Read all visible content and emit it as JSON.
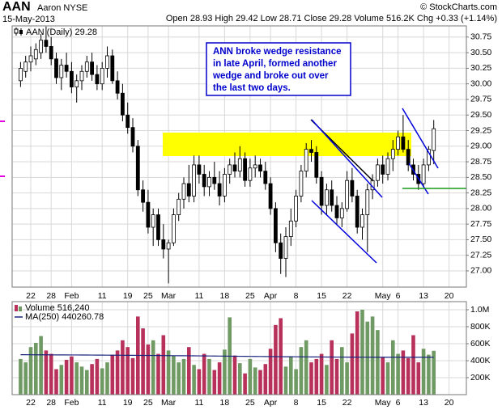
{
  "chart_data": [
    {
      "type": "candlestick",
      "title": "AAN",
      "subtitle": "Aaron NYSE",
      "date": "15-May-2013",
      "source": "© StockCharts.com",
      "quote": "Open 28.93 High 29.42 Low 28.71 Close 29.28 Volume 516.2K Chg +0.33 (+1.14%)",
      "name": "AAN (Daily) 29.28",
      "annotation": [
        "ANN broke wedge resistance",
        "in late April, formed another",
        "wedge and broke out over",
        "the last two days."
      ],
      "categories": [
        null,
        null,
        "22",
        null,
        null,
        null,
        "28",
        null,
        null,
        null,
        "Feb",
        null,
        null,
        null,
        null,
        null,
        "11",
        null,
        null,
        null,
        null,
        "19",
        null,
        null,
        null,
        "25",
        null,
        null,
        null,
        "Mar",
        null,
        null,
        null,
        null,
        null,
        "11",
        null,
        null,
        null,
        null,
        "18",
        null,
        null,
        null,
        null,
        "25",
        null,
        null,
        null,
        "Apr",
        null,
        null,
        null,
        null,
        "8",
        null,
        null,
        null,
        null,
        "15",
        null,
        null,
        null,
        null,
        "22",
        null,
        null,
        null,
        null,
        null,
        null,
        "May",
        null,
        null,
        "6",
        null,
        null,
        null,
        null,
        "13",
        null,
        null,
        null,
        null,
        "20",
        null,
        null
      ],
      "open": [
        30.05,
        30.2,
        30.35,
        30.4,
        30.5,
        30.7,
        30.6,
        30.4,
        30.1,
        30.3,
        30.2,
        29.95,
        30.05,
        30.2,
        30.35,
        30.15,
        30.0,
        30.25,
        30.45,
        30.05,
        29.85,
        29.5,
        29.3,
        29.0,
        28.3,
        28.1,
        27.7,
        27.9,
        27.5,
        27.35,
        27.45,
        27.9,
        28.15,
        28.4,
        28.2,
        28.7,
        28.55,
        28.35,
        28.5,
        28.4,
        28.2,
        28.55,
        28.7,
        28.6,
        28.8,
        28.45,
        28.65,
        28.7,
        28.6,
        28.4,
        28.0,
        27.45,
        27.2,
        27.55,
        27.8,
        28.2,
        28.6,
        28.95,
        28.9,
        28.5,
        28.05,
        28.3,
        28.05,
        27.85,
        28.0,
        28.45,
        28.2,
        27.7,
        27.9,
        28.3,
        28.45,
        28.7,
        28.55,
        28.8,
        28.95,
        29.15,
        28.95,
        28.7,
        28.55,
        28.4,
        28.7,
        28.93,
        null,
        null,
        null,
        null,
        null
      ],
      "high": [
        30.35,
        30.45,
        30.6,
        30.65,
        30.8,
        30.92,
        30.75,
        30.5,
        30.4,
        30.5,
        30.35,
        30.15,
        30.3,
        30.45,
        30.5,
        30.3,
        30.35,
        30.6,
        30.55,
        30.2,
        30.0,
        29.7,
        29.45,
        29.1,
        28.45,
        28.3,
        28.0,
        28.0,
        27.75,
        27.5,
        28.0,
        28.25,
        28.5,
        28.7,
        28.85,
        28.85,
        28.7,
        28.6,
        28.75,
        28.6,
        28.65,
        28.8,
        28.9,
        29.0,
        28.9,
        28.8,
        28.85,
        28.8,
        28.75,
        28.5,
        28.1,
        27.6,
        27.7,
        28.0,
        28.3,
        28.7,
        29.05,
        29.1,
        29.0,
        28.6,
        28.4,
        28.45,
        28.2,
        28.1,
        28.6,
        28.65,
        28.3,
        28.0,
        28.4,
        28.55,
        28.8,
        28.85,
        28.9,
        29.1,
        29.25,
        29.5,
        29.1,
        28.8,
        28.7,
        28.8,
        29.0,
        29.42,
        null,
        null,
        null,
        null,
        null
      ],
      "low": [
        29.95,
        30.1,
        30.2,
        30.3,
        30.4,
        30.5,
        30.3,
        30.0,
        29.9,
        30.1,
        29.85,
        29.7,
        29.9,
        30.1,
        30.05,
        29.9,
        29.9,
        30.1,
        30.0,
        29.75,
        29.4,
        29.2,
        28.9,
        28.2,
        27.95,
        27.6,
        27.4,
        27.4,
        27.2,
        26.8,
        27.4,
        27.8,
        28.0,
        28.1,
        28.1,
        28.4,
        28.2,
        28.2,
        28.3,
        28.05,
        28.1,
        28.4,
        28.5,
        28.5,
        28.35,
        28.35,
        28.5,
        28.5,
        28.3,
        27.9,
        27.3,
        26.95,
        26.9,
        27.4,
        27.7,
        28.1,
        28.5,
        28.75,
        28.4,
        27.9,
        27.9,
        27.95,
        27.75,
        27.7,
        27.95,
        28.1,
        27.6,
        27.5,
        27.3,
        28.15,
        28.35,
        28.4,
        28.45,
        28.6,
        28.85,
        28.9,
        28.6,
        28.45,
        28.3,
        28.35,
        28.6,
        28.71,
        null,
        null,
        null,
        null,
        null
      ],
      "close": [
        30.25,
        30.35,
        30.45,
        30.55,
        30.7,
        30.6,
        30.4,
        30.1,
        30.3,
        30.2,
        29.95,
        30.05,
        30.2,
        30.35,
        30.15,
        30.0,
        30.25,
        30.45,
        30.05,
        29.85,
        29.5,
        29.3,
        29.0,
        28.3,
        28.1,
        27.7,
        27.9,
        27.5,
        27.35,
        27.45,
        27.9,
        28.15,
        28.4,
        28.2,
        28.7,
        28.55,
        28.35,
        28.5,
        28.4,
        28.2,
        28.55,
        28.7,
        28.6,
        28.8,
        28.45,
        28.65,
        28.7,
        28.6,
        28.4,
        28.0,
        27.45,
        27.2,
        27.55,
        27.8,
        28.2,
        28.6,
        28.95,
        28.9,
        28.5,
        28.05,
        28.3,
        28.05,
        27.85,
        28.0,
        28.45,
        28.2,
        27.7,
        27.9,
        28.3,
        28.45,
        28.7,
        28.55,
        28.8,
        28.95,
        29.15,
        28.95,
        28.7,
        28.55,
        28.4,
        28.7,
        28.95,
        29.28,
        null,
        null,
        null,
        null,
        null
      ],
      "color": "#000000",
      "ylim": [
        26.74,
        30.93
      ],
      "yticks": [
        {
          "value": 27,
          "label": "27.00"
        },
        27.25,
        {
          "value": 27.5,
          "label": "27.50"
        },
        27.75,
        {
          "value": 28,
          "label": "28.00"
        },
        28.25,
        {
          "value": 28.5,
          "label": "28.50"
        },
        28.75,
        {
          "value": 29,
          "label": "29.00"
        },
        29.25,
        {
          "value": 29.5,
          "label": "29.50"
        },
        29.75,
        {
          "value": 30,
          "label": "30.00"
        },
        30.25,
        {
          "value": 30.5,
          "label": "30.50"
        },
        30.75
      ],
      "grid": true
    },
    {
      "type": "bar",
      "categories": [
        null,
        null,
        "22",
        null,
        null,
        null,
        "28",
        null,
        null,
        null,
        "Feb",
        null,
        null,
        null,
        null,
        null,
        "11",
        null,
        null,
        null,
        null,
        "19",
        null,
        null,
        null,
        "25",
        null,
        null,
        null,
        "Mar",
        null,
        null,
        null,
        null,
        null,
        "11",
        null,
        null,
        null,
        null,
        "18",
        null,
        null,
        null,
        null,
        "25",
        null,
        null,
        null,
        "Apr",
        null,
        null,
        null,
        null,
        "8",
        null,
        null,
        null,
        null,
        "15",
        null,
        null,
        null,
        null,
        "22",
        null,
        null,
        null,
        null,
        null,
        null,
        "May",
        null,
        null,
        "6",
        null,
        null,
        null,
        null,
        "13",
        null,
        null,
        null,
        null,
        "20",
        null,
        null
      ],
      "series": [
        {
          "name": "Volume 516,240",
          "up_color": "#6f9a63",
          "down_color": "#b8315a",
          "values": [
            420000,
            380000,
            560000,
            610000,
            690000,
            520000,
            480000,
            300000,
            350000,
            410000,
            450000,
            380000,
            330000,
            290000,
            360000,
            420000,
            310000,
            380000,
            470000,
            520000,
            640000,
            560000,
            430000,
            920000,
            780000,
            590000,
            640000,
            480000,
            700000,
            520000,
            460000,
            380000,
            420000,
            560000,
            350000,
            300000,
            480000,
            420000,
            290000,
            380000,
            530000,
            910000,
            460000,
            370000,
            250000,
            420000,
            320000,
            290000,
            360000,
            540000,
            820000,
            900000,
            330000,
            450000,
            300000,
            560000,
            640000,
            380000,
            420000,
            480000,
            350000,
            640000,
            420000,
            560000,
            380000,
            720000,
            980000,
            1000000,
            860000,
            920000,
            760000,
            440000,
            380000,
            640000,
            480000,
            520000,
            430000,
            700000,
            380000,
            540000,
            470000,
            516240,
            null,
            null,
            null,
            null,
            null
          ]
        },
        {
          "name": "MA(250) 440260.78",
          "type": "line",
          "color": "#1a237e",
          "values": [
            470000,
            469800,
            469500,
            469200,
            469000,
            468700,
            468400,
            468100,
            467800,
            467500,
            467200,
            466900,
            466600,
            466300,
            466000,
            465600,
            465200,
            464800,
            464400,
            464000,
            463600,
            463200,
            462800,
            462400,
            462000,
            461500,
            461000,
            460500,
            460000,
            459500,
            459000,
            458500,
            458000,
            457500,
            457000,
            456400,
            455800,
            455200,
            454600,
            454000,
            453400,
            452800,
            452200,
            451600,
            451000,
            450400,
            449800,
            449200,
            448600,
            448000,
            447500,
            447000,
            446500,
            446000,
            445500,
            445000,
            444600,
            444200,
            443800,
            443400,
            443000,
            442700,
            442400,
            442100,
            441800,
            441500,
            441300,
            441100,
            440900,
            440700,
            440600,
            440500,
            440450,
            440400,
            440380,
            440360,
            440340,
            440320,
            440300,
            440290,
            440270,
            440260.78,
            null,
            null,
            null,
            null,
            null
          ]
        }
      ],
      "ylim": [
        0,
        1095000
      ],
      "yticks": [
        {
          "value": 200000,
          "label": "200K"
        },
        {
          "value": 400000,
          "label": "400K"
        },
        {
          "value": 600000,
          "label": "600K"
        },
        {
          "value": 800000,
          "label": "800K"
        },
        {
          "value": 1000000,
          "label": "1.0M"
        }
      ],
      "grid": true
    }
  ]
}
